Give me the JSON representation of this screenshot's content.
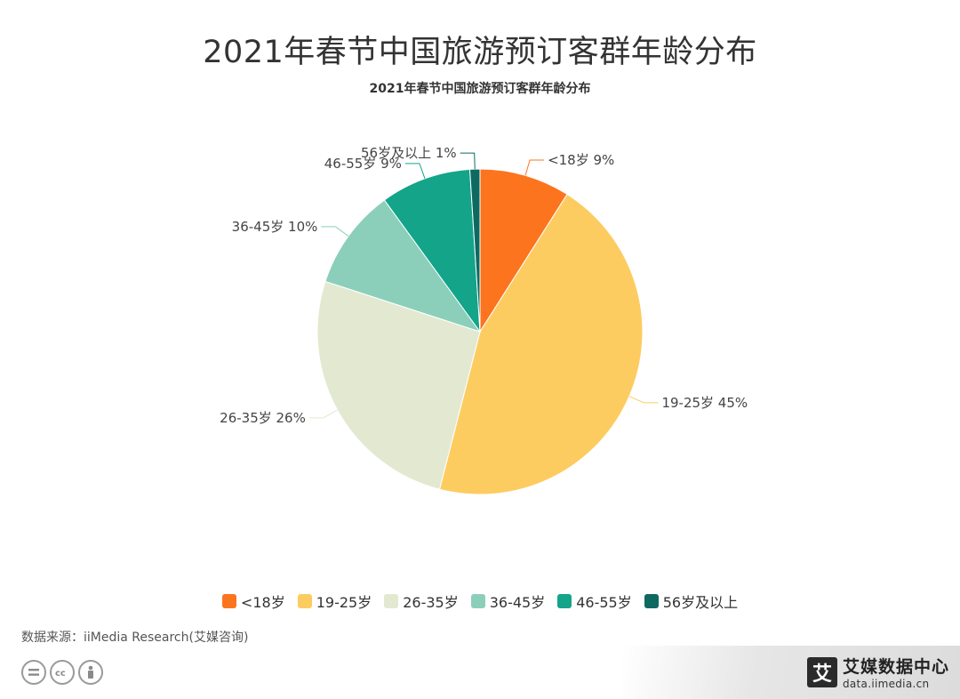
{
  "header": {
    "title": "2021年春节中国旅游预订客群年龄分布",
    "subtitle": "2021年春节中国旅游预订客群年龄分布"
  },
  "chart_data": {
    "type": "pie",
    "title": "2021年春节中国旅游预订客群年龄分布",
    "categories": [
      "<18岁",
      "19-25岁",
      "26-35岁",
      "36-45岁",
      "46-55岁",
      "56岁及以上"
    ],
    "values": [
      9,
      45,
      26,
      10,
      9,
      1
    ],
    "labels": [
      "<18岁 9%",
      "19-25岁 45%",
      "26-35岁 26%",
      "36-45岁 10%",
      "46-55岁 9%",
      "56岁及以上 1%"
    ],
    "colors": [
      "#fc741e",
      "#fdcc60",
      "#e2e9d0",
      "#8bcfba",
      "#13a48a",
      "#0e6a61"
    ],
    "legend": "bottom-center"
  },
  "footer": {
    "source": "数据来源：iiMedia Research(艾媒咨询)",
    "cc_icons": [
      "equals-icon",
      "cc-icon",
      "person-icon"
    ],
    "brand_logo": "艾",
    "brand_name": "艾媒数据中心",
    "brand_url": "data.iimedia.cn"
  }
}
